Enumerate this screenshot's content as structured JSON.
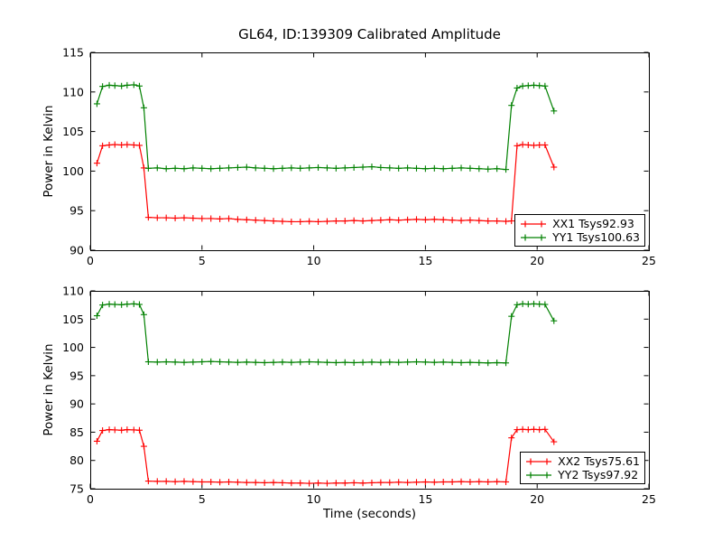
{
  "figure": {
    "title": "GL64, ID:139309 Calibrated Amplitude",
    "background": "#ffffff",
    "axis_color": "#000000"
  },
  "chart_data": [
    {
      "type": "line",
      "subplot": "top",
      "ylabel": "Power in Kelvin",
      "xlabel": "",
      "xlim": [
        0,
        25
      ],
      "ylim": [
        90,
        115
      ],
      "xticks": [
        0,
        5,
        10,
        15,
        20,
        25
      ],
      "yticks": [
        90,
        95,
        100,
        105,
        110,
        115
      ],
      "grid": false,
      "legend_position": "lower right",
      "marker": "plus",
      "x": [
        0.3,
        0.55,
        0.85,
        1.1,
        1.4,
        1.65,
        1.95,
        2.2,
        2.4,
        2.6,
        3.0,
        3.4,
        3.8,
        4.2,
        4.6,
        5.0,
        5.4,
        5.8,
        6.2,
        6.6,
        7.0,
        7.4,
        7.8,
        8.2,
        8.6,
        9.0,
        9.4,
        9.8,
        10.2,
        10.6,
        11.0,
        11.4,
        11.8,
        12.2,
        12.6,
        13.0,
        13.4,
        13.8,
        14.2,
        14.6,
        15.0,
        15.4,
        15.8,
        16.2,
        16.6,
        17.0,
        17.4,
        17.8,
        18.2,
        18.6,
        18.85,
        19.1,
        19.35,
        19.6,
        19.85,
        20.1,
        20.35,
        20.75
      ],
      "series": [
        {
          "name": "XX1 Tsys92.93",
          "color": "#ff0000",
          "values": [
            101.0,
            103.2,
            103.3,
            103.35,
            103.3,
            103.35,
            103.3,
            103.25,
            100.4,
            94.15,
            94.1,
            94.1,
            94.05,
            94.1,
            94.05,
            94.0,
            94.0,
            93.95,
            94.0,
            93.9,
            93.85,
            93.8,
            93.75,
            93.7,
            93.65,
            93.6,
            93.6,
            93.65,
            93.6,
            93.65,
            93.7,
            93.7,
            93.75,
            93.7,
            93.75,
            93.8,
            93.85,
            93.8,
            93.85,
            93.9,
            93.85,
            93.9,
            93.85,
            93.8,
            93.75,
            93.8,
            93.75,
            93.7,
            93.7,
            93.65,
            93.7,
            103.2,
            103.35,
            103.3,
            103.25,
            103.3,
            103.3,
            100.5
          ]
        },
        {
          "name": "YY1 Tsys100.63",
          "color": "#008000",
          "values": [
            108.5,
            110.7,
            110.85,
            110.8,
            110.75,
            110.85,
            110.9,
            110.75,
            108.0,
            100.35,
            100.4,
            100.3,
            100.35,
            100.3,
            100.4,
            100.35,
            100.3,
            100.35,
            100.4,
            100.45,
            100.5,
            100.4,
            100.35,
            100.3,
            100.35,
            100.4,
            100.35,
            100.4,
            100.45,
            100.4,
            100.35,
            100.4,
            100.45,
            100.5,
            100.55,
            100.45,
            100.4,
            100.35,
            100.4,
            100.35,
            100.3,
            100.35,
            100.3,
            100.35,
            100.4,
            100.35,
            100.3,
            100.25,
            100.3,
            100.2,
            108.3,
            110.5,
            110.75,
            110.8,
            110.85,
            110.8,
            110.75,
            107.6
          ]
        }
      ]
    },
    {
      "type": "line",
      "subplot": "bottom",
      "ylabel": "Power in Kelvin",
      "xlabel": "Time (seconds)",
      "xlim": [
        0,
        25
      ],
      "ylim": [
        75,
        110
      ],
      "xticks": [
        0,
        5,
        10,
        15,
        20,
        25
      ],
      "yticks": [
        75,
        80,
        85,
        90,
        95,
        100,
        105,
        110
      ],
      "grid": false,
      "legend_position": "lower right",
      "marker": "plus",
      "x": [
        0.3,
        0.55,
        0.85,
        1.1,
        1.4,
        1.65,
        1.95,
        2.2,
        2.4,
        2.6,
        3.0,
        3.4,
        3.8,
        4.2,
        4.6,
        5.0,
        5.4,
        5.8,
        6.2,
        6.6,
        7.0,
        7.4,
        7.8,
        8.2,
        8.6,
        9.0,
        9.4,
        9.8,
        10.2,
        10.6,
        11.0,
        11.4,
        11.8,
        12.2,
        12.6,
        13.0,
        13.4,
        13.8,
        14.2,
        14.6,
        15.0,
        15.4,
        15.8,
        16.2,
        16.6,
        17.0,
        17.4,
        17.8,
        18.2,
        18.6,
        18.85,
        19.1,
        19.35,
        19.6,
        19.85,
        20.1,
        20.35,
        20.75
      ],
      "series": [
        {
          "name": "XX2 Tsys75.61",
          "color": "#ff0000",
          "values": [
            83.4,
            85.3,
            85.45,
            85.4,
            85.35,
            85.45,
            85.4,
            85.35,
            82.5,
            76.35,
            76.3,
            76.3,
            76.25,
            76.3,
            76.25,
            76.2,
            76.2,
            76.15,
            76.2,
            76.15,
            76.1,
            76.1,
            76.05,
            76.1,
            76.05,
            76.0,
            76.0,
            75.95,
            76.0,
            75.95,
            76.0,
            76.0,
            76.05,
            76.0,
            76.05,
            76.1,
            76.1,
            76.15,
            76.1,
            76.15,
            76.2,
            76.15,
            76.2,
            76.2,
            76.25,
            76.2,
            76.25,
            76.2,
            76.25,
            76.2,
            84.0,
            85.45,
            85.5,
            85.45,
            85.5,
            85.45,
            85.5,
            83.3
          ]
        },
        {
          "name": "YY2 Tsys97.92",
          "color": "#008000",
          "values": [
            105.6,
            107.5,
            107.65,
            107.6,
            107.55,
            107.65,
            107.7,
            107.6,
            105.8,
            97.45,
            97.4,
            97.45,
            97.4,
            97.35,
            97.4,
            97.45,
            97.5,
            97.45,
            97.4,
            97.35,
            97.4,
            97.35,
            97.3,
            97.35,
            97.4,
            97.35,
            97.4,
            97.45,
            97.4,
            97.35,
            97.3,
            97.35,
            97.3,
            97.35,
            97.4,
            97.35,
            97.4,
            97.35,
            97.4,
            97.45,
            97.4,
            97.35,
            97.4,
            97.35,
            97.3,
            97.35,
            97.3,
            97.25,
            97.3,
            97.25,
            105.5,
            107.55,
            107.7,
            107.65,
            107.7,
            107.65,
            107.6,
            104.7
          ]
        }
      ]
    }
  ]
}
